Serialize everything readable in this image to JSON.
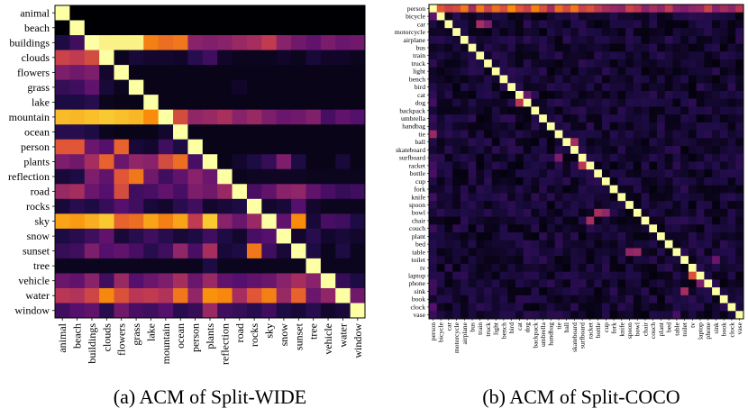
{
  "chart_data": [
    {
      "type": "heatmap",
      "caption": "(a) ACM of Split-WIDE",
      "title": "",
      "xlabel": "",
      "ylabel": "",
      "categories": [
        "animal",
        "beach",
        "buildings",
        "clouds",
        "flowers",
        "grass",
        "lake",
        "mountain",
        "ocean",
        "person",
        "plants",
        "reflection",
        "road",
        "rocks",
        "sky",
        "snow",
        "sunset",
        "tree",
        "vehicle",
        "water",
        "window"
      ],
      "colormap": "inferno",
      "value_range": [
        0,
        1
      ],
      "notes": "Row i, column j = co-occurrence strength of class j given class i; diagonal = 1.0",
      "matrix": [
        [
          1.0,
          0.0,
          0.0,
          0.0,
          0.0,
          0.0,
          0.0,
          0.0,
          0.0,
          0.0,
          0.0,
          0.0,
          0.0,
          0.0,
          0.0,
          0.0,
          0.0,
          0.0,
          0.0,
          0.0,
          0.0
        ],
        [
          0.0,
          1.0,
          0.0,
          0.0,
          0.0,
          0.0,
          0.0,
          0.0,
          0.0,
          0.0,
          0.0,
          0.0,
          0.0,
          0.0,
          0.0,
          0.0,
          0.0,
          0.0,
          0.0,
          0.0,
          0.0
        ],
        [
          0.12,
          0.2,
          1.0,
          0.97,
          0.97,
          0.97,
          0.72,
          0.68,
          0.7,
          0.38,
          0.36,
          0.38,
          0.42,
          0.45,
          0.52,
          0.38,
          0.32,
          0.28,
          0.34,
          0.3,
          0.32
        ],
        [
          0.55,
          0.52,
          0.58,
          1.0,
          0.05,
          0.1,
          0.08,
          0.08,
          0.07,
          0.15,
          0.2,
          0.07,
          0.05,
          0.05,
          0.05,
          0.07,
          0.05,
          0.1,
          0.07,
          0.07,
          0.05
        ],
        [
          0.35,
          0.32,
          0.35,
          0.08,
          1.0,
          0.04,
          0.04,
          0.04,
          0.04,
          0.04,
          0.04,
          0.04,
          0.04,
          0.04,
          0.04,
          0.04,
          0.04,
          0.04,
          0.04,
          0.04,
          0.04
        ],
        [
          0.18,
          0.2,
          0.28,
          0.1,
          0.05,
          1.0,
          0.04,
          0.04,
          0.04,
          0.04,
          0.04,
          0.04,
          0.07,
          0.04,
          0.04,
          0.04,
          0.04,
          0.04,
          0.04,
          0.04,
          0.04
        ],
        [
          0.12,
          0.12,
          0.15,
          0.05,
          0.04,
          0.04,
          1.0,
          0.04,
          0.04,
          0.04,
          0.04,
          0.04,
          0.04,
          0.04,
          0.04,
          0.04,
          0.04,
          0.04,
          0.04,
          0.04,
          0.04
        ],
        [
          0.85,
          0.84,
          0.86,
          0.88,
          0.86,
          0.84,
          0.75,
          1.0,
          0.58,
          0.4,
          0.42,
          0.46,
          0.38,
          0.42,
          0.35,
          0.3,
          0.32,
          0.36,
          0.22,
          0.28,
          0.25
        ],
        [
          0.15,
          0.15,
          0.12,
          0.05,
          0.04,
          0.04,
          0.04,
          0.08,
          1.0,
          0.04,
          0.04,
          0.04,
          0.04,
          0.04,
          0.04,
          0.04,
          0.04,
          0.04,
          0.04,
          0.04,
          0.04
        ],
        [
          0.62,
          0.62,
          0.3,
          0.25,
          0.65,
          0.1,
          0.08,
          0.2,
          0.12,
          1.0,
          0.04,
          0.04,
          0.04,
          0.04,
          0.04,
          0.04,
          0.04,
          0.04,
          0.04,
          0.04,
          0.04
        ],
        [
          0.35,
          0.32,
          0.45,
          0.65,
          0.3,
          0.4,
          0.38,
          0.58,
          0.68,
          0.22,
          1.0,
          0.04,
          0.08,
          0.12,
          0.18,
          0.35,
          0.12,
          0.04,
          0.04,
          0.1,
          0.04
        ],
        [
          0.1,
          0.12,
          0.35,
          0.28,
          0.62,
          0.7,
          0.32,
          0.2,
          0.28,
          0.38,
          0.3,
          1.0,
          0.05,
          0.06,
          0.06,
          0.06,
          0.06,
          0.05,
          0.05,
          0.05,
          0.05
        ],
        [
          0.42,
          0.45,
          0.3,
          0.25,
          0.58,
          0.2,
          0.22,
          0.28,
          0.22,
          0.35,
          0.32,
          0.42,
          1.0,
          0.22,
          0.28,
          0.38,
          0.4,
          0.28,
          0.22,
          0.18,
          0.2
        ],
        [
          0.1,
          0.15,
          0.12,
          0.18,
          0.25,
          0.2,
          0.1,
          0.08,
          0.15,
          0.2,
          0.08,
          0.1,
          0.12,
          1.0,
          0.08,
          0.1,
          0.25,
          0.08,
          0.05,
          0.05,
          0.05
        ],
        [
          0.8,
          0.78,
          0.82,
          0.88,
          0.65,
          0.68,
          0.8,
          0.72,
          0.8,
          0.52,
          0.88,
          0.38,
          0.3,
          0.42,
          1.0,
          0.28,
          0.75,
          0.1,
          0.22,
          0.2,
          0.12
        ],
        [
          0.12,
          0.15,
          0.2,
          0.28,
          0.1,
          0.15,
          0.2,
          0.15,
          0.1,
          0.12,
          0.2,
          0.12,
          0.08,
          0.22,
          0.25,
          1.0,
          0.08,
          0.15,
          0.08,
          0.1,
          0.08
        ],
        [
          0.18,
          0.2,
          0.35,
          0.25,
          0.28,
          0.22,
          0.15,
          0.2,
          0.4,
          0.22,
          0.45,
          0.1,
          0.12,
          0.7,
          0.2,
          0.1,
          1.0,
          0.12,
          0.05,
          0.12,
          0.05
        ],
        [
          0.05,
          0.05,
          0.05,
          0.05,
          0.05,
          0.05,
          0.05,
          0.05,
          0.05,
          0.05,
          0.12,
          0.05,
          0.05,
          0.05,
          0.05,
          0.05,
          0.05,
          1.0,
          0.05,
          0.05,
          0.05
        ],
        [
          0.3,
          0.28,
          0.38,
          0.2,
          0.42,
          0.25,
          0.3,
          0.35,
          0.45,
          0.3,
          0.42,
          0.28,
          0.25,
          0.28,
          0.3,
          0.38,
          0.45,
          0.38,
          1.0,
          0.18,
          0.12
        ],
        [
          0.5,
          0.48,
          0.56,
          0.74,
          0.6,
          0.5,
          0.52,
          0.48,
          0.7,
          0.4,
          0.76,
          0.74,
          0.45,
          0.62,
          0.72,
          0.42,
          0.65,
          0.3,
          0.4,
          1.0,
          0.32
        ],
        [
          0.2,
          0.25,
          0.28,
          0.15,
          0.32,
          0.22,
          0.2,
          0.25,
          0.15,
          0.18,
          0.42,
          0.2,
          0.18,
          0.15,
          0.2,
          0.12,
          0.1,
          0.15,
          0.08,
          0.1,
          1.0
        ]
      ]
    },
    {
      "type": "heatmap",
      "caption": "(b) ACM of Split-COCO",
      "title": "",
      "xlabel": "",
      "ylabel": "",
      "categories": [
        "person",
        "bicycle",
        "car",
        "motorcycle",
        "airplane",
        "bus",
        "train",
        "truck",
        "light",
        "bench",
        "bird",
        "cat",
        "dog",
        "backpack",
        "umbrella",
        "handbag",
        "tie",
        "ball",
        "skateboard",
        "surfboard",
        "racket",
        "bottle",
        "cup",
        "fork",
        "knife",
        "spoon",
        "bowl",
        "chair",
        "couch",
        "plant",
        "bed",
        "table",
        "toilet",
        "tv",
        "laptop",
        "phone",
        "sink",
        "book",
        "clock",
        "vase"
      ],
      "colormap": "inferno",
      "value_range": [
        0,
        1
      ],
      "notes": "Top row (person) is bright for most classes; diagonal = 1.0; off-diagonal mostly dark purple",
      "person_row": [
        1.0,
        0.62,
        0.55,
        0.58,
        0.7,
        0.45,
        0.7,
        0.55,
        0.68,
        0.6,
        0.75,
        0.62,
        0.55,
        0.72,
        0.6,
        0.45,
        0.68,
        0.58,
        0.7,
        0.55,
        0.6,
        0.52,
        0.45,
        0.42,
        0.4,
        0.55,
        0.5,
        0.38,
        0.45,
        0.4,
        0.52,
        0.38,
        0.35,
        0.4,
        0.42,
        0.55,
        0.38,
        0.45,
        0.4,
        0.5
      ],
      "highlights": [
        {
          "row": "bicycle",
          "col": "person",
          "value": 0.28
        },
        {
          "row": "car",
          "col": "train",
          "value": 0.45
        },
        {
          "row": "car",
          "col": "truck",
          "value": 0.35
        },
        {
          "row": "cat",
          "col": "dog",
          "value": 0.3
        },
        {
          "row": "dog",
          "col": "cat",
          "value": 0.5
        },
        {
          "row": "tie",
          "col": "person",
          "value": 0.42
        },
        {
          "row": "ball",
          "col": "skateboard",
          "value": 0.45
        },
        {
          "row": "surfboard",
          "col": "tie",
          "value": 0.35
        },
        {
          "row": "racket",
          "col": "surfboard",
          "value": 0.5
        },
        {
          "row": "bowl",
          "col": "bottle",
          "value": 0.45
        },
        {
          "row": "bowl",
          "col": "cup",
          "value": 0.4
        },
        {
          "row": "chair",
          "col": "racket",
          "value": 0.45
        },
        {
          "row": "table",
          "col": "spoon",
          "value": 0.4
        },
        {
          "row": "table",
          "col": "bowl",
          "value": 0.42
        },
        {
          "row": "toilet",
          "col": "sink",
          "value": 0.3
        },
        {
          "row": "laptop",
          "col": "tv",
          "value": 0.6
        },
        {
          "row": "phone",
          "col": "laptop",
          "value": 0.35
        },
        {
          "row": "sink",
          "col": "toilet",
          "value": 0.45
        },
        {
          "row": "clock",
          "col": "person",
          "value": 0.25
        },
        {
          "row": "vase",
          "col": "table",
          "value": 0.22
        }
      ]
    }
  ]
}
